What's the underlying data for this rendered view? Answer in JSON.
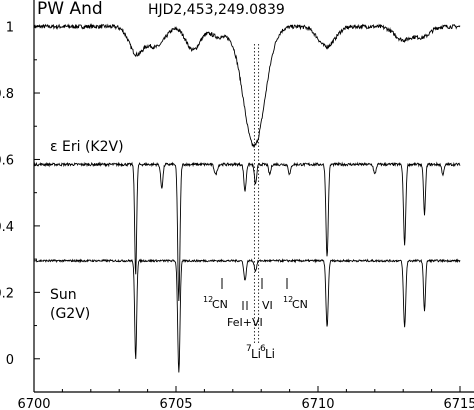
{
  "chart_data": {
    "type": "line",
    "title": "PW And",
    "subtitle": "HJD2,453,249.0839",
    "xlabel": "",
    "ylabel": "",
    "xlim": [
      6700,
      6715
    ],
    "ylim": [
      -0.1,
      1.08
    ],
    "grid": false,
    "x_ticks": [
      {
        "value": 6700,
        "label": "6700"
      },
      {
        "value": 6705,
        "label": "6705"
      },
      {
        "value": 6710,
        "label": "6710"
      },
      {
        "value": 6715,
        "label": "6715"
      }
    ],
    "y_ticks": [
      {
        "value": 0,
        "label": "0"
      },
      {
        "value": 0.2,
        "label": "0.2"
      },
      {
        "value": 0.4,
        "label": "0.4"
      },
      {
        "value": 0.6,
        "label": "0.6"
      },
      {
        "value": 0.8,
        "label": "0.8"
      },
      {
        "value": 1,
        "label": "1"
      }
    ],
    "series": [
      {
        "continuum": 1.0,
        "noise": 0.006,
        "lines": [
          {
            "center": 6703.6,
            "depth": 0.08,
            "width": 0.25
          },
          {
            "center": 6704.3,
            "depth": 0.06,
            "width": 0.3
          },
          {
            "center": 6705.6,
            "depth": 0.07,
            "width": 0.25
          },
          {
            "center": 6706.5,
            "depth": 0.03,
            "width": 0.3
          },
          {
            "center": 6707.75,
            "depth": 0.36,
            "width": 0.38
          },
          {
            "center": 6710.3,
            "depth": 0.06,
            "width": 0.3
          },
          {
            "center": 6713.0,
            "depth": 0.04,
            "width": 0.3
          },
          {
            "center": 6713.7,
            "depth": 0.03,
            "width": 0.25
          }
        ]
      },
      {
        "name": "ε Eri (K2V)",
        "continuum": 0.585,
        "noise": 0.004,
        "lines": [
          {
            "center": 6703.58,
            "depth": 0.33,
            "width": 0.035
          },
          {
            "center": 6704.5,
            "depth": 0.07,
            "width": 0.04
          },
          {
            "center": 6705.1,
            "depth": 0.41,
            "width": 0.04
          },
          {
            "center": 6706.4,
            "depth": 0.03,
            "width": 0.05
          },
          {
            "center": 6707.43,
            "depth": 0.08,
            "width": 0.04
          },
          {
            "center": 6707.8,
            "depth": 0.06,
            "width": 0.04
          },
          {
            "center": 6708.3,
            "depth": 0.03,
            "width": 0.04
          },
          {
            "center": 6709.0,
            "depth": 0.03,
            "width": 0.04
          },
          {
            "center": 6710.32,
            "depth": 0.28,
            "width": 0.04
          },
          {
            "center": 6712.0,
            "depth": 0.03,
            "width": 0.04
          },
          {
            "center": 6713.05,
            "depth": 0.24,
            "width": 0.04
          },
          {
            "center": 6713.75,
            "depth": 0.15,
            "width": 0.035
          },
          {
            "center": 6714.4,
            "depth": 0.03,
            "width": 0.04
          }
        ]
      },
      {
        "name": "Sun (G2V)",
        "continuum": 0.295,
        "noise": 0.003,
        "lines": [
          {
            "center": 6703.58,
            "depth": 0.295,
            "width": 0.035
          },
          {
            "center": 6705.1,
            "depth": 0.335,
            "width": 0.04
          },
          {
            "center": 6707.43,
            "depth": 0.06,
            "width": 0.04
          },
          {
            "center": 6707.8,
            "depth": 0.03,
            "width": 0.04
          },
          {
            "center": 6710.32,
            "depth": 0.2,
            "width": 0.04
          },
          {
            "center": 6713.05,
            "depth": 0.2,
            "width": 0.04
          },
          {
            "center": 6713.75,
            "depth": 0.15,
            "width": 0.035
          }
        ]
      }
    ],
    "reference_lines": [
      6707.76,
      6707.91
    ],
    "annotations": {
      "star_label": "ε Eri (K2V)",
      "sun_label_1": "Sun",
      "sun_label_2": "(G2V)",
      "cn_left": "12",
      "cn_left_sym": "CN",
      "cn_right": "12",
      "cn_right_sym": "CN",
      "fe_v": "FeI+VI",
      "vi": "VI",
      "li7": "7",
      "li7_sym": "Li",
      "li6": "6",
      "li6_sym": "Li"
    }
  }
}
